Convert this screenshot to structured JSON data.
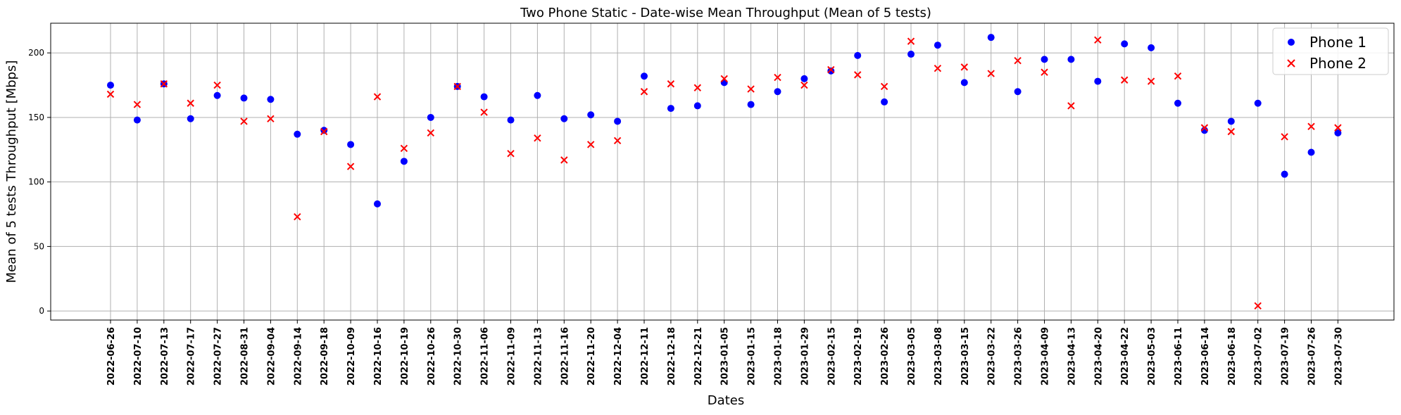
{
  "chart_data": {
    "type": "scatter",
    "title": "Two Phone Static - Date-wise Mean Throughput (Mean of 5 tests)",
    "xlabel": "Dates",
    "ylabel": "Mean of 5 tests Throughput [Mbps]",
    "ylim": [
      -7,
      223
    ],
    "yticks": [
      0,
      50,
      100,
      150,
      200
    ],
    "grid": true,
    "legend_position": "top-right",
    "categories": [
      "2022-06-26",
      "2022-07-10",
      "2022-07-13",
      "2022-07-17",
      "2022-07-27",
      "2022-08-31",
      "2022-09-04",
      "2022-09-14",
      "2022-09-18",
      "2022-10-09",
      "2022-10-16",
      "2022-10-19",
      "2022-10-26",
      "2022-10-30",
      "2022-11-06",
      "2022-11-09",
      "2022-11-13",
      "2022-11-16",
      "2022-11-20",
      "2022-12-04",
      "2022-12-11",
      "2022-12-18",
      "2022-12-21",
      "2023-01-05",
      "2023-01-15",
      "2023-01-18",
      "2023-01-29",
      "2023-02-15",
      "2023-02-19",
      "2023-02-26",
      "2023-03-05",
      "2023-03-08",
      "2023-03-15",
      "2023-03-22",
      "2023-03-26",
      "2023-04-09",
      "2023-04-13",
      "2023-04-20",
      "2023-04-22",
      "2023-05-03",
      "2023-06-11",
      "2023-06-14",
      "2023-06-18",
      "2023-07-02",
      "2023-07-19",
      "2023-07-26",
      "2023-07-30"
    ],
    "series": [
      {
        "name": "Phone 1",
        "marker": "circle",
        "color": "#0000ff",
        "values": [
          175,
          148,
          176,
          149,
          167,
          165,
          164,
          137,
          140,
          129,
          83,
          116,
          150,
          174,
          166,
          148,
          167,
          149,
          152,
          147,
          182,
          157,
          159,
          177,
          160,
          170,
          180,
          186,
          198,
          162,
          199,
          206,
          177,
          212,
          170,
          195,
          195,
          178,
          207,
          204,
          161,
          140,
          147,
          161,
          106,
          123,
          138
        ]
      },
      {
        "name": "Phone 2",
        "marker": "x",
        "color": "#ff0000",
        "values": [
          168,
          160,
          176,
          161,
          175,
          147,
          149,
          73,
          139,
          112,
          166,
          126,
          138,
          174,
          154,
          122,
          134,
          117,
          129,
          132,
          170,
          176,
          173,
          180,
          172,
          181,
          175,
          187,
          183,
          174,
          209,
          188,
          189,
          184,
          194,
          185,
          159,
          210,
          179,
          178,
          182,
          142,
          139,
          4,
          135,
          143,
          142
        ]
      }
    ]
  }
}
